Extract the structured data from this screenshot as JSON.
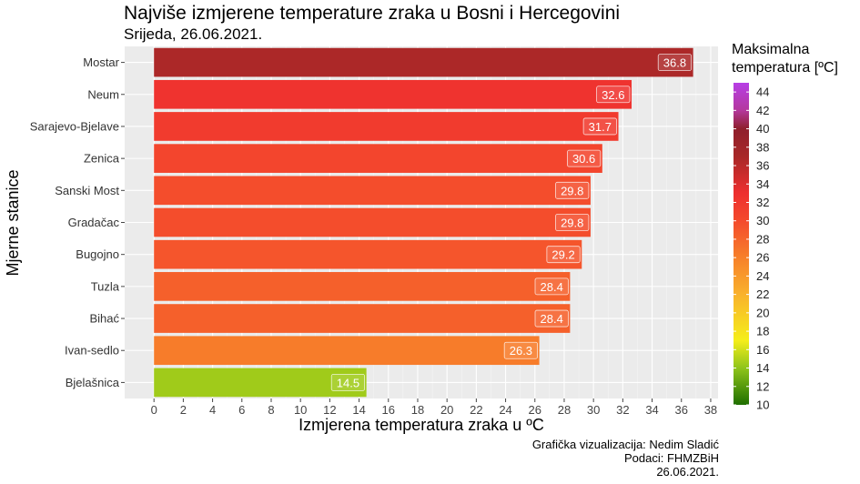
{
  "chart_data": {
    "type": "bar",
    "orientation": "horizontal",
    "title": "Najviše izmjerene temperature zraka u Bosni i Hercegovini",
    "subtitle": "Srijeda, 26.06.2021.",
    "xlabel": "Izmjerena temperatura zraka u ºC",
    "ylabel": "Mjerne stanice",
    "categories": [
      "Mostar",
      "Neum",
      "Sarajevo-Bjelave",
      "Zenica",
      "Sanski Most",
      "Gradačac",
      "Bugojno",
      "Tuzla",
      "Bihać",
      "Ivan-sedlo",
      "Bjelašnica"
    ],
    "values": [
      36.8,
      32.6,
      31.7,
      30.6,
      29.8,
      29.8,
      29.2,
      28.4,
      28.4,
      26.3,
      14.5
    ],
    "value_labels": [
      "36.8",
      "32.6",
      "31.7",
      "30.6",
      "29.8",
      "29.8",
      "29.2",
      "28.4",
      "28.4",
      "26.3",
      "14.5"
    ],
    "xlim": [
      -2,
      38.5
    ],
    "xticks": [
      0,
      2,
      4,
      6,
      8,
      10,
      12,
      14,
      16,
      18,
      20,
      22,
      24,
      26,
      28,
      30,
      32,
      34,
      36,
      38
    ],
    "grid": true,
    "legend": {
      "title_line1": "Maksimalna",
      "title_line2": "temperatura [ºC]",
      "placement": "right",
      "range": [
        10,
        45
      ],
      "ticks": [
        10,
        12,
        14,
        16,
        18,
        20,
        22,
        24,
        26,
        28,
        30,
        32,
        34,
        36,
        38,
        40,
        42,
        44
      ],
      "color_stops": [
        {
          "value": 10,
          "color": "#1f6f00"
        },
        {
          "value": 14,
          "color": "#8fc41a"
        },
        {
          "value": 17,
          "color": "#f5ee1a"
        },
        {
          "value": 22,
          "color": "#f9b22c"
        },
        {
          "value": 26,
          "color": "#f7802a"
        },
        {
          "value": 30,
          "color": "#f44a2c"
        },
        {
          "value": 33,
          "color": "#ee2f2f"
        },
        {
          "value": 37,
          "color": "#a82828"
        },
        {
          "value": 40,
          "color": "#8f1f2c"
        },
        {
          "value": 42,
          "color": "#b4389d"
        },
        {
          "value": 45,
          "color": "#b73ee6"
        }
      ]
    },
    "colors": {
      "panel_bg": "#ebebeb",
      "grid_major": "#ffffff",
      "label_fill": "rgba(255,255,255,0.15)"
    }
  },
  "caption": {
    "line1": "Grafička vizualizacija: Nedim Sladić",
    "line2": "Podaci: FHMZBiH",
    "line3": "26.06.2021."
  }
}
